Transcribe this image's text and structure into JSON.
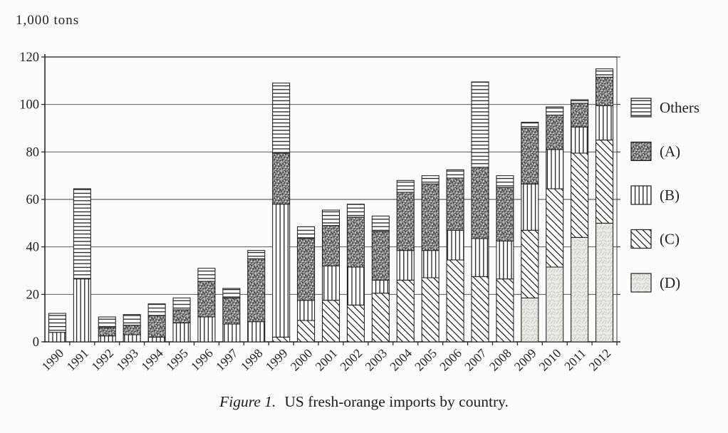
{
  "page": {
    "unit_label": "1,000 tons",
    "caption_prefix": "Figure 1.",
    "caption_text": "US fresh-orange imports by country."
  },
  "chart_data": {
    "type": "bar",
    "stacked": true,
    "title": "Figure 1. US fresh-orange imports by country.",
    "ylabel": "1,000 tons",
    "xlabel": "",
    "ylim": [
      0,
      120
    ],
    "yticks": [
      0,
      20,
      40,
      60,
      80,
      100,
      120
    ],
    "grid": true,
    "legend_position": "right",
    "categories": [
      "1990",
      "1991",
      "1992",
      "1993",
      "1994",
      "1995",
      "1996",
      "1997",
      "1998",
      "1999",
      "2000",
      "2001",
      "2002",
      "2003",
      "2004",
      "2005",
      "2006",
      "2007",
      "2008",
      "2009",
      "2010",
      "2011",
      "2012"
    ],
    "series": [
      {
        "name": "(D)",
        "pattern": "light-stipple",
        "values": [
          0,
          0,
          0,
          0,
          0,
          0,
          0,
          0,
          0,
          0,
          0,
          0,
          0,
          0,
          0,
          0,
          0,
          0,
          0,
          18.5,
          31.5,
          44,
          50
        ]
      },
      {
        "name": "(C)",
        "pattern": "diagonal-lines",
        "values": [
          0,
          0,
          0,
          0,
          0,
          0,
          0,
          0,
          0,
          2,
          9,
          17.5,
          15.5,
          20.5,
          26,
          27,
          34.5,
          27.5,
          26.5,
          28.5,
          33,
          35.5,
          35
        ]
      },
      {
        "name": "(B)",
        "pattern": "vertical-lines",
        "values": [
          4,
          26.5,
          2.5,
          3,
          2,
          8,
          10.5,
          7.5,
          8.5,
          56,
          8.5,
          14.5,
          16,
          5.5,
          12.5,
          11.5,
          12.5,
          16,
          16,
          19.5,
          16.5,
          11,
          14.5
        ]
      },
      {
        "name": "(A)",
        "pattern": "dark-stipple",
        "values": [
          0,
          0,
          3.5,
          4,
          9,
          5.5,
          15,
          11,
          26.5,
          21.5,
          26,
          17,
          21,
          20.5,
          24.5,
          28,
          22,
          30,
          22.5,
          23.5,
          14.5,
          10,
          12
        ]
      },
      {
        "name": "Others",
        "pattern": "horizontal-lines",
        "values": [
          8,
          38,
          4.5,
          4.5,
          5,
          5,
          5.5,
          4,
          3.5,
          29.5,
          5,
          6.5,
          5.5,
          6.5,
          5,
          3.5,
          3.5,
          36,
          5,
          2.5,
          3.5,
          1.5,
          3.5
        ]
      }
    ],
    "legend": [
      {
        "label": "Others",
        "pattern": "horizontal-lines"
      },
      {
        "label": "(A)",
        "pattern": "dark-stipple"
      },
      {
        "label": "(B)",
        "pattern": "vertical-lines"
      },
      {
        "label": "(C)",
        "pattern": "diagonal-lines"
      },
      {
        "label": "(D)",
        "pattern": "light-stipple"
      }
    ],
    "colors": {
      "ink": "#1f1f1f",
      "paper": "#fcfcfa",
      "dark_fill": "#8d8d8d",
      "light_fill": "#eceae5"
    }
  }
}
